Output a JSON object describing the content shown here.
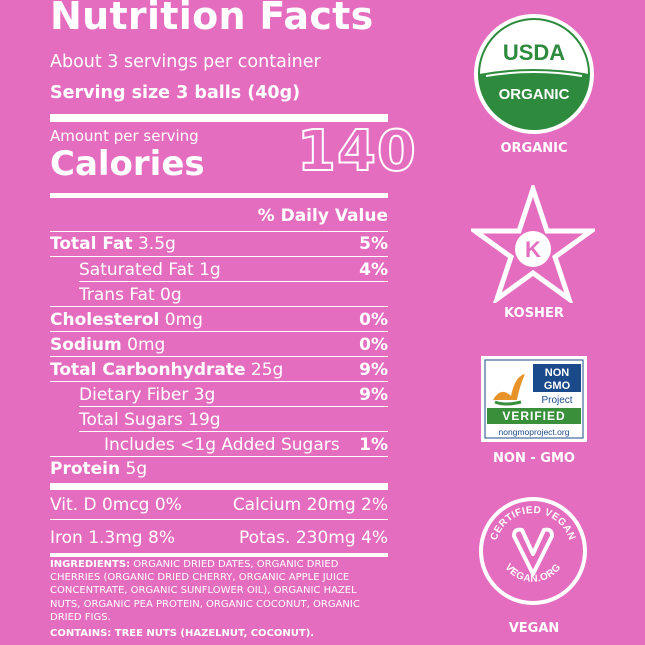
{
  "label": {
    "title": "Nutrition Facts",
    "servings": "About 3 servings per container",
    "serving_size": "Serving size 3 balls (40g)",
    "amount_per_serving": "Amount per serving",
    "calories_label": "Calories",
    "calories_value": "140",
    "daily_value_header": "% Daily Value",
    "rows": [
      {
        "name": "Total Fat",
        "amount": "3.5g",
        "pct": "5%",
        "bold": true,
        "indent": 0
      },
      {
        "name": "Saturated Fat",
        "amount": "1g",
        "pct": "4%",
        "bold": false,
        "indent": 1
      },
      {
        "name": "Trans Fat",
        "amount": "0g",
        "pct": "",
        "bold": false,
        "indent": 1
      },
      {
        "name": "Cholesterol",
        "amount": "0mg",
        "pct": "0%",
        "bold": true,
        "indent": 0
      },
      {
        "name": "Sodium",
        "amount": "0mg",
        "pct": "0%",
        "bold": true,
        "indent": 0
      },
      {
        "name": "Total Carbonhydrate",
        "amount": "25g",
        "pct": "9%",
        "bold": true,
        "indent": 0
      },
      {
        "name": "Dietary Fiber",
        "amount": "3g",
        "pct": "9%",
        "bold": false,
        "indent": 1
      },
      {
        "name": "Total Sugars",
        "amount": "19g",
        "pct": "",
        "bold": false,
        "indent": 1
      },
      {
        "name": "Includes <1g Added Sugars",
        "amount": "",
        "pct": "1%",
        "bold": false,
        "indent": 2
      },
      {
        "name": "Protein",
        "amount": "5g",
        "pct": "",
        "bold": true,
        "indent": 0
      }
    ],
    "vit_d": "Vit. D 0mcg 0%",
    "calcium": "Calcium 20mg 2%",
    "iron": "Iron 1.3mg 8%",
    "potassium": "Potas. 230mg 4%",
    "ingredients_label": "INGREDIENTS:",
    "ingredients_text": "ORGANIC DRIED DATES, ORGANIC DRIED CHERRIES (ORGANIC DRIED CHERRY, ORGANIC APPLE JUICE CONCENTRATE, ORGANIC SUNFLOWER OIL), ORGANIC HAZEL NUTS, ORGANIC PEA PROTEIN, ORGANIC COCONUT, ORGANIC DRIED FIGS.",
    "contains": "CONTAINS: TREE NUTS (HAZELNUT, COCONUT)."
  },
  "badges": {
    "usda_top": "USDA",
    "usda_bottom": "ORGANIC",
    "organic_label": "ORGANIC",
    "kosher_letter": "K",
    "kosher_label": "KOSHER",
    "nongmo_non": "NON",
    "nongmo_gmo": "GMO",
    "nongmo_project": "Project",
    "nongmo_verified": "VERIFIED",
    "nongmo_url": "nongmoproject.org",
    "nongmo_label": "NON - GMO",
    "vegan_top": "CERTIFIED VEGAN",
    "vegan_bottom": "VEGAN.ORG",
    "vegan_label": "VEGAN"
  },
  "colors": {
    "background": "#e56dbf",
    "usda_green": "#2e8b3e",
    "nongmo_blue": "#1b4a8a",
    "nongmo_green": "#3a8f3a"
  }
}
